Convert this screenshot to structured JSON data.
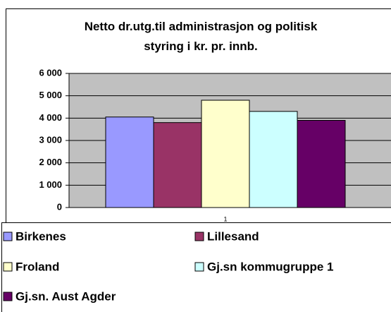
{
  "chart_data": {
    "type": "bar",
    "title": "Netto dr.utg.til administrasjon og politisk styring i kr. pr. innb.",
    "categories": [
      "1"
    ],
    "series": [
      {
        "name": "Birkenes",
        "color": "#9999ff",
        "values": [
          4050
        ]
      },
      {
        "name": "Lillesand",
        "color": "#993366",
        "values": [
          3800
        ]
      },
      {
        "name": "Froland",
        "color": "#ffffcc",
        "values": [
          4800
        ]
      },
      {
        "name": "Gj.sn kommugruppe 1",
        "color": "#ccffff",
        "values": [
          4300
        ]
      },
      {
        "name": "Gj.sn. Aust Agder",
        "color": "#660066",
        "values": [
          3900
        ]
      }
    ],
    "ylim": [
      0,
      6000
    ],
    "yticks": [
      {
        "value": 0,
        "label": "0"
      },
      {
        "value": 1000,
        "label": "1 000"
      },
      {
        "value": 2000,
        "label": "2 000"
      },
      {
        "value": 3000,
        "label": "3 000"
      },
      {
        "value": 4000,
        "label": "4 000"
      },
      {
        "value": 5000,
        "label": "5 000"
      },
      {
        "value": 6000,
        "label": "6 000"
      }
    ],
    "grid": true,
    "legend": "bottom"
  }
}
